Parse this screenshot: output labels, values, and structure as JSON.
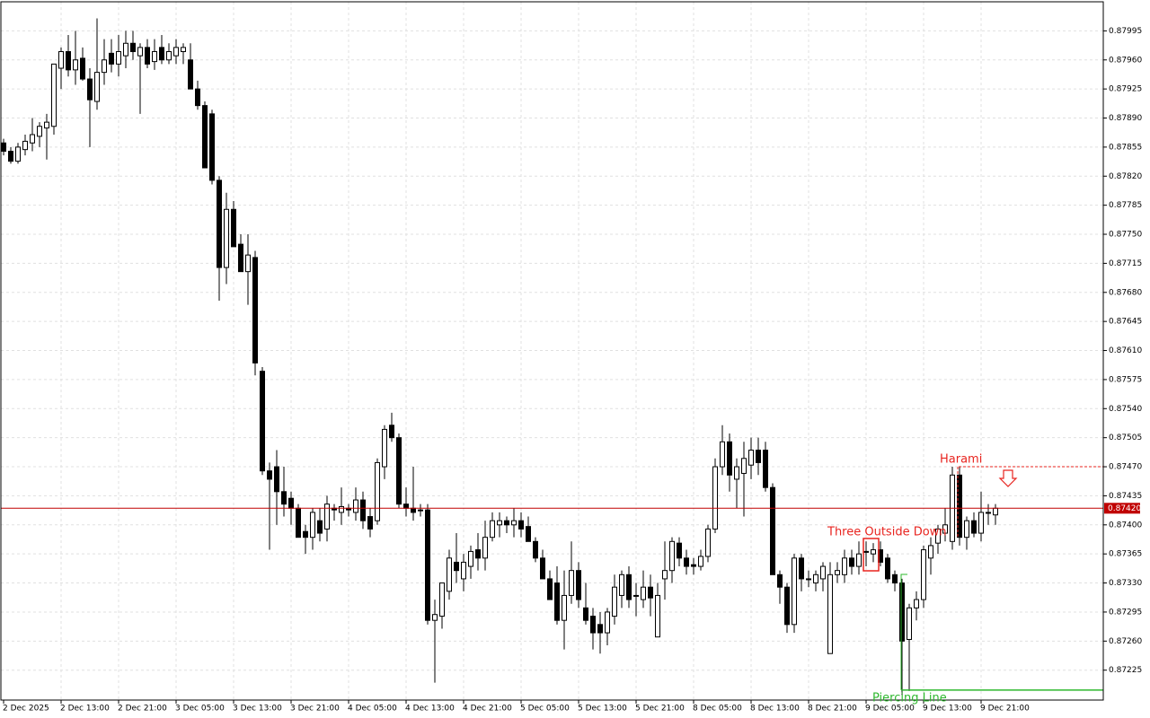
{
  "chart_data": {
    "type": "candlestick",
    "up_color": "#ffffff",
    "down_color": "#000000",
    "grid": true,
    "ylim": [
      0.87189,
      0.8803
    ],
    "yticks": [
      0.87995,
      {
        "value": 0.8796,
        "label": "0.87960"
      },
      0.87925,
      {
        "value": 0.8789,
        "label": "0.87890"
      },
      0.87855,
      {
        "value": 0.8782,
        "label": "0.87820"
      },
      0.87785,
      {
        "value": 0.8775,
        "label": "0.87750"
      },
      0.87715,
      {
        "value": 0.8768,
        "label": "0.87680"
      },
      0.87645,
      {
        "value": 0.8761,
        "label": "0.87610"
      },
      0.87575,
      {
        "value": 0.8754,
        "label": "0.87540"
      },
      0.87505,
      {
        "value": 0.8747,
        "label": "0.87470"
      },
      0.87435,
      {
        "value": 0.874,
        "label": "0.87400"
      },
      0.87365,
      {
        "value": 0.8733,
        "label": "0.87330"
      },
      0.87295,
      {
        "value": 0.8726,
        "label": "0.87260"
      },
      0.87225
    ],
    "last_price": {
      "value": 0.8742,
      "label": "0.87420"
    },
    "annotations": [
      {
        "text": "Harami",
        "level": 0.8747
      },
      {
        "text": "Three Outside Down"
      },
      {
        "text": "Piercing Line",
        "level": 0.87201
      }
    ],
    "categories": [
      "2 Dec 2025",
      null,
      null,
      null,
      null,
      null,
      null,
      null,
      "2 Dec 13:00",
      null,
      null,
      null,
      null,
      null,
      null,
      null,
      "2 Dec 21:00",
      null,
      null,
      null,
      null,
      null,
      null,
      null,
      "3 Dec 05:00",
      null,
      null,
      null,
      null,
      null,
      null,
      null,
      "3 Dec 13:00",
      null,
      null,
      null,
      null,
      null,
      null,
      null,
      "3 Dec 21:00",
      null,
      null,
      null,
      null,
      null,
      null,
      null,
      "4 Dec 05:00",
      null,
      null,
      null,
      null,
      null,
      null,
      null,
      "4 Dec 13:00",
      null,
      null,
      null,
      null,
      null,
      null,
      null,
      "4 Dec 21:00",
      null,
      null,
      null,
      null,
      null,
      null,
      null,
      "5 Dec 05:00",
      null,
      null,
      null,
      null,
      null,
      null,
      null,
      "5 Dec 13:00",
      null,
      null,
      null,
      null,
      null,
      null,
      null,
      "5 Dec 21:00",
      null,
      null,
      null,
      null,
      null,
      null,
      null,
      "8 Dec 05:00",
      null,
      null,
      null,
      null,
      null,
      null,
      null,
      "8 Dec 13:00",
      null,
      null,
      null,
      null,
      null,
      null,
      null,
      "8 Dec 21:00",
      null,
      null,
      null,
      null,
      null,
      null,
      null,
      "9 Dec 05:00",
      null,
      null,
      null,
      null,
      null,
      null,
      null,
      "9 Dec 13:00",
      null,
      null,
      null,
      null,
      null,
      null,
      null,
      "9 Dec 21:00",
      null,
      null
    ],
    "ohlc": [
      [
        0.8786,
        0.87865,
        0.87845,
        0.8785
      ],
      [
        0.8785,
        0.87855,
        0.87835,
        0.87838
      ],
      [
        0.87838,
        0.8786,
        0.87835,
        0.87855
      ],
      [
        0.87852,
        0.8787,
        0.87845,
        0.87862
      ],
      [
        0.8786,
        0.8789,
        0.8785,
        0.8787
      ],
      [
        0.87868,
        0.87885,
        0.87855,
        0.8788
      ],
      [
        0.87878,
        0.87895,
        0.8784,
        0.87885
      ],
      [
        0.8788,
        0.87955,
        0.8787,
        0.87955
      ],
      [
        0.8795,
        0.87975,
        0.87925,
        0.8797
      ],
      [
        0.8797,
        0.8799,
        0.8794,
        0.87948
      ],
      [
        0.87948,
        0.87995,
        0.8793,
        0.8796
      ],
      [
        0.87962,
        0.87975,
        0.87935,
        0.87937
      ],
      [
        0.87937,
        0.8795,
        0.87855,
        0.87912
      ],
      [
        0.8791,
        0.8801,
        0.879,
        0.87945
      ],
      [
        0.87945,
        0.87985,
        0.8793,
        0.8796
      ],
      [
        0.87968,
        0.87985,
        0.87945,
        0.87955
      ],
      [
        0.87955,
        0.8799,
        0.8794,
        0.8797
      ],
      [
        0.87965,
        0.87995,
        0.8795,
        0.8798
      ],
      [
        0.8798,
        0.87995,
        0.8796,
        0.8797
      ],
      [
        0.87965,
        0.8798,
        0.87895,
        0.87975
      ],
      [
        0.87975,
        0.87985,
        0.8795,
        0.87955
      ],
      [
        0.87958,
        0.87985,
        0.87948,
        0.8797
      ],
      [
        0.87975,
        0.8799,
        0.87955,
        0.8796
      ],
      [
        0.8796,
        0.8798,
        0.87955,
        0.8797
      ],
      [
        0.87965,
        0.87985,
        0.87955,
        0.87975
      ],
      [
        0.8797,
        0.8798,
        0.87955,
        0.87975
      ],
      [
        0.8796,
        0.8798,
        0.87925,
        0.87925
      ],
      [
        0.87925,
        0.87935,
        0.879,
        0.87905
      ],
      [
        0.87905,
        0.8791,
        0.8783,
        0.8783
      ],
      [
        0.87895,
        0.879,
        0.8781,
        0.87815
      ],
      [
        0.87815,
        0.8782,
        0.8767,
        0.8771
      ],
      [
        0.8771,
        0.878,
        0.8769,
        0.8778
      ],
      [
        0.8778,
        0.8779,
        0.87735,
        0.87735
      ],
      [
        0.87738,
        0.8775,
        0.87705,
        0.87705
      ],
      [
        0.87705,
        0.8775,
        0.87665,
        0.87725
      ],
      [
        0.87722,
        0.8773,
        0.8758,
        0.87595
      ],
      [
        0.87585,
        0.8759,
        0.8746,
        0.87465
      ],
      [
        0.87465,
        0.87475,
        0.8737,
        0.87455
      ],
      [
        0.8747,
        0.8749,
        0.874,
        0.8744
      ],
      [
        0.8744,
        0.8747,
        0.8741,
        0.87425
      ],
      [
        0.87432,
        0.8744,
        0.874,
        0.8742
      ],
      [
        0.8742,
        0.87425,
        0.87385,
        0.87385
      ],
      [
        0.87392,
        0.874,
        0.87365,
        0.87385
      ],
      [
        0.87385,
        0.8742,
        0.8737,
        0.87415
      ],
      [
        0.87405,
        0.8742,
        0.8738,
        0.8739
      ],
      [
        0.87395,
        0.87435,
        0.8738,
        0.87425
      ],
      [
        0.8742,
        0.87425,
        0.87405,
        0.87418
      ],
      [
        0.87415,
        0.87445,
        0.874,
        0.87422
      ],
      [
        0.8742,
        0.87425,
        0.8741,
        0.87418
      ],
      [
        0.87415,
        0.87445,
        0.87405,
        0.8743
      ],
      [
        0.8743,
        0.8744,
        0.87395,
        0.87405
      ],
      [
        0.8741,
        0.8742,
        0.87385,
        0.87395
      ],
      [
        0.87405,
        0.8748,
        0.874,
        0.87475
      ],
      [
        0.8747,
        0.8752,
        0.87455,
        0.87515
      ],
      [
        0.8752,
        0.87535,
        0.875,
        0.87505
      ],
      [
        0.87505,
        0.8751,
        0.8742,
        0.87425
      ],
      [
        0.87425,
        0.87445,
        0.8741,
        0.8742
      ],
      [
        0.8742,
        0.8747,
        0.87405,
        0.87415
      ],
      [
        0.87418,
        0.87425,
        0.8741,
        0.87418
      ],
      [
        0.87418,
        0.87425,
        0.8728,
        0.87285
      ],
      [
        0.87285,
        0.8731,
        0.8721,
        0.87292
      ],
      [
        0.8729,
        0.8733,
        0.87275,
        0.8733
      ],
      [
        0.8732,
        0.8737,
        0.8731,
        0.8736
      ],
      [
        0.87355,
        0.8739,
        0.8733,
        0.87345
      ],
      [
        0.87335,
        0.87365,
        0.8732,
        0.87355
      ],
      [
        0.8735,
        0.87375,
        0.87335,
        0.87368
      ],
      [
        0.8737,
        0.8739,
        0.87345,
        0.8736
      ],
      [
        0.8736,
        0.87405,
        0.87345,
        0.87385
      ],
      [
        0.87385,
        0.87415,
        0.8738,
        0.87405
      ],
      [
        0.874,
        0.87415,
        0.87385,
        0.87405
      ],
      [
        0.87405,
        0.8741,
        0.8739,
        0.874
      ],
      [
        0.874,
        0.8742,
        0.87385,
        0.87405
      ],
      [
        0.87405,
        0.87415,
        0.87385,
        0.87395
      ],
      [
        0.87398,
        0.8741,
        0.8738,
        0.8738
      ],
      [
        0.8738,
        0.87385,
        0.87355,
        0.8736
      ],
      [
        0.8736,
        0.8737,
        0.87335,
        0.87335
      ],
      [
        0.87335,
        0.87345,
        0.8731,
        0.8731
      ],
      [
        0.8733,
        0.8735,
        0.8728,
        0.87285
      ],
      [
        0.87285,
        0.87345,
        0.8725,
        0.87315
      ],
      [
        0.87315,
        0.8738,
        0.87305,
        0.87345
      ],
      [
        0.87345,
        0.87355,
        0.873,
        0.8731
      ],
      [
        0.873,
        0.8733,
        0.8728,
        0.87285
      ],
      [
        0.8729,
        0.873,
        0.8725,
        0.8727
      ],
      [
        0.8728,
        0.87295,
        0.87245,
        0.8727
      ],
      [
        0.8727,
        0.873,
        0.87255,
        0.87295
      ],
      [
        0.8729,
        0.8734,
        0.8728,
        0.87325
      ],
      [
        0.87315,
        0.87345,
        0.873,
        0.8734
      ],
      [
        0.8734,
        0.8735,
        0.873,
        0.8731
      ],
      [
        0.87315,
        0.8733,
        0.8729,
        0.87315
      ],
      [
        0.8731,
        0.87345,
        0.873,
        0.87325
      ],
      [
        0.87325,
        0.8734,
        0.8729,
        0.87312
      ],
      [
        0.87265,
        0.8733,
        0.87265,
        0.87315
      ],
      [
        0.87335,
        0.8738,
        0.8731,
        0.87345
      ],
      [
        0.87345,
        0.87385,
        0.8733,
        0.8738
      ],
      [
        0.87378,
        0.87385,
        0.8735,
        0.8736
      ],
      [
        0.8736,
        0.8737,
        0.8734,
        0.8735
      ],
      [
        0.87352,
        0.8736,
        0.8734,
        0.8735
      ],
      [
        0.8735,
        0.8737,
        0.87345,
        0.87362
      ],
      [
        0.87362,
        0.874,
        0.87355,
        0.87395
      ],
      [
        0.87395,
        0.8748,
        0.8739,
        0.8747
      ],
      [
        0.8747,
        0.8752,
        0.8746,
        0.875
      ],
      [
        0.875,
        0.8751,
        0.8744,
        0.8746
      ],
      [
        0.87455,
        0.8748,
        0.8742,
        0.8747
      ],
      [
        0.87462,
        0.875,
        0.8741,
        0.8748
      ],
      [
        0.87472,
        0.87505,
        0.87455,
        0.8749
      ],
      [
        0.8749,
        0.87505,
        0.8746,
        0.87475
      ],
      [
        0.8749,
        0.875,
        0.8744,
        0.87445
      ],
      [
        0.87445,
        0.8745,
        0.8734,
        0.8734
      ],
      [
        0.8734,
        0.87345,
        0.87305,
        0.87325
      ],
      [
        0.87325,
        0.8733,
        0.8727,
        0.8728
      ],
      [
        0.8728,
        0.87365,
        0.8727,
        0.8736
      ],
      [
        0.8736,
        0.87365,
        0.8732,
        0.87335
      ],
      [
        0.87335,
        0.87345,
        0.87325,
        0.87335
      ],
      [
        0.8733,
        0.87345,
        0.8732,
        0.8734
      ],
      [
        0.87335,
        0.87355,
        0.8732,
        0.8735
      ],
      [
        0.87245,
        0.87355,
        0.87245,
        0.8734
      ],
      [
        0.8734,
        0.87355,
        0.8733,
        0.87345
      ],
      [
        0.8734,
        0.8737,
        0.8733,
        0.8736
      ],
      [
        0.8736,
        0.8737,
        0.8734,
        0.8735
      ],
      [
        0.8735,
        0.8738,
        0.8734,
        0.87365
      ],
      [
        0.87368,
        0.8738,
        0.8735,
        0.87368
      ],
      [
        0.87365,
        0.87378,
        0.87355,
        0.8737
      ],
      [
        0.8737,
        0.8738,
        0.8735,
        0.87355
      ],
      [
        0.8736,
        0.87365,
        0.8733,
        0.87335
      ],
      [
        0.8734,
        0.87345,
        0.8732,
        0.8733
      ],
      [
        0.8733,
        0.87335,
        0.87195,
        0.8726
      ],
      [
        0.87262,
        0.87305,
        0.872,
        0.873
      ],
      [
        0.873,
        0.8732,
        0.87285,
        0.8731
      ],
      [
        0.8731,
        0.87375,
        0.873,
        0.8737
      ],
      [
        0.8736,
        0.87385,
        0.8734,
        0.87375
      ],
      [
        0.87378,
        0.874,
        0.87365,
        0.87395
      ],
      [
        0.8739,
        0.8742,
        0.8738,
        0.874
      ],
      [
        0.8738,
        0.8747,
        0.8737,
        0.8746
      ],
      [
        0.8746,
        0.8747,
        0.87375,
        0.87385
      ],
      [
        0.87385,
        0.8741,
        0.8737,
        0.87405
      ],
      [
        0.87405,
        0.87415,
        0.87385,
        0.8739
      ],
      [
        0.8739,
        0.8744,
        0.8738,
        0.87415
      ],
      [
        0.87415,
        0.87425,
        0.874,
        0.87415
      ],
      [
        0.87412,
        0.87425,
        0.874,
        0.8742
      ]
    ]
  }
}
